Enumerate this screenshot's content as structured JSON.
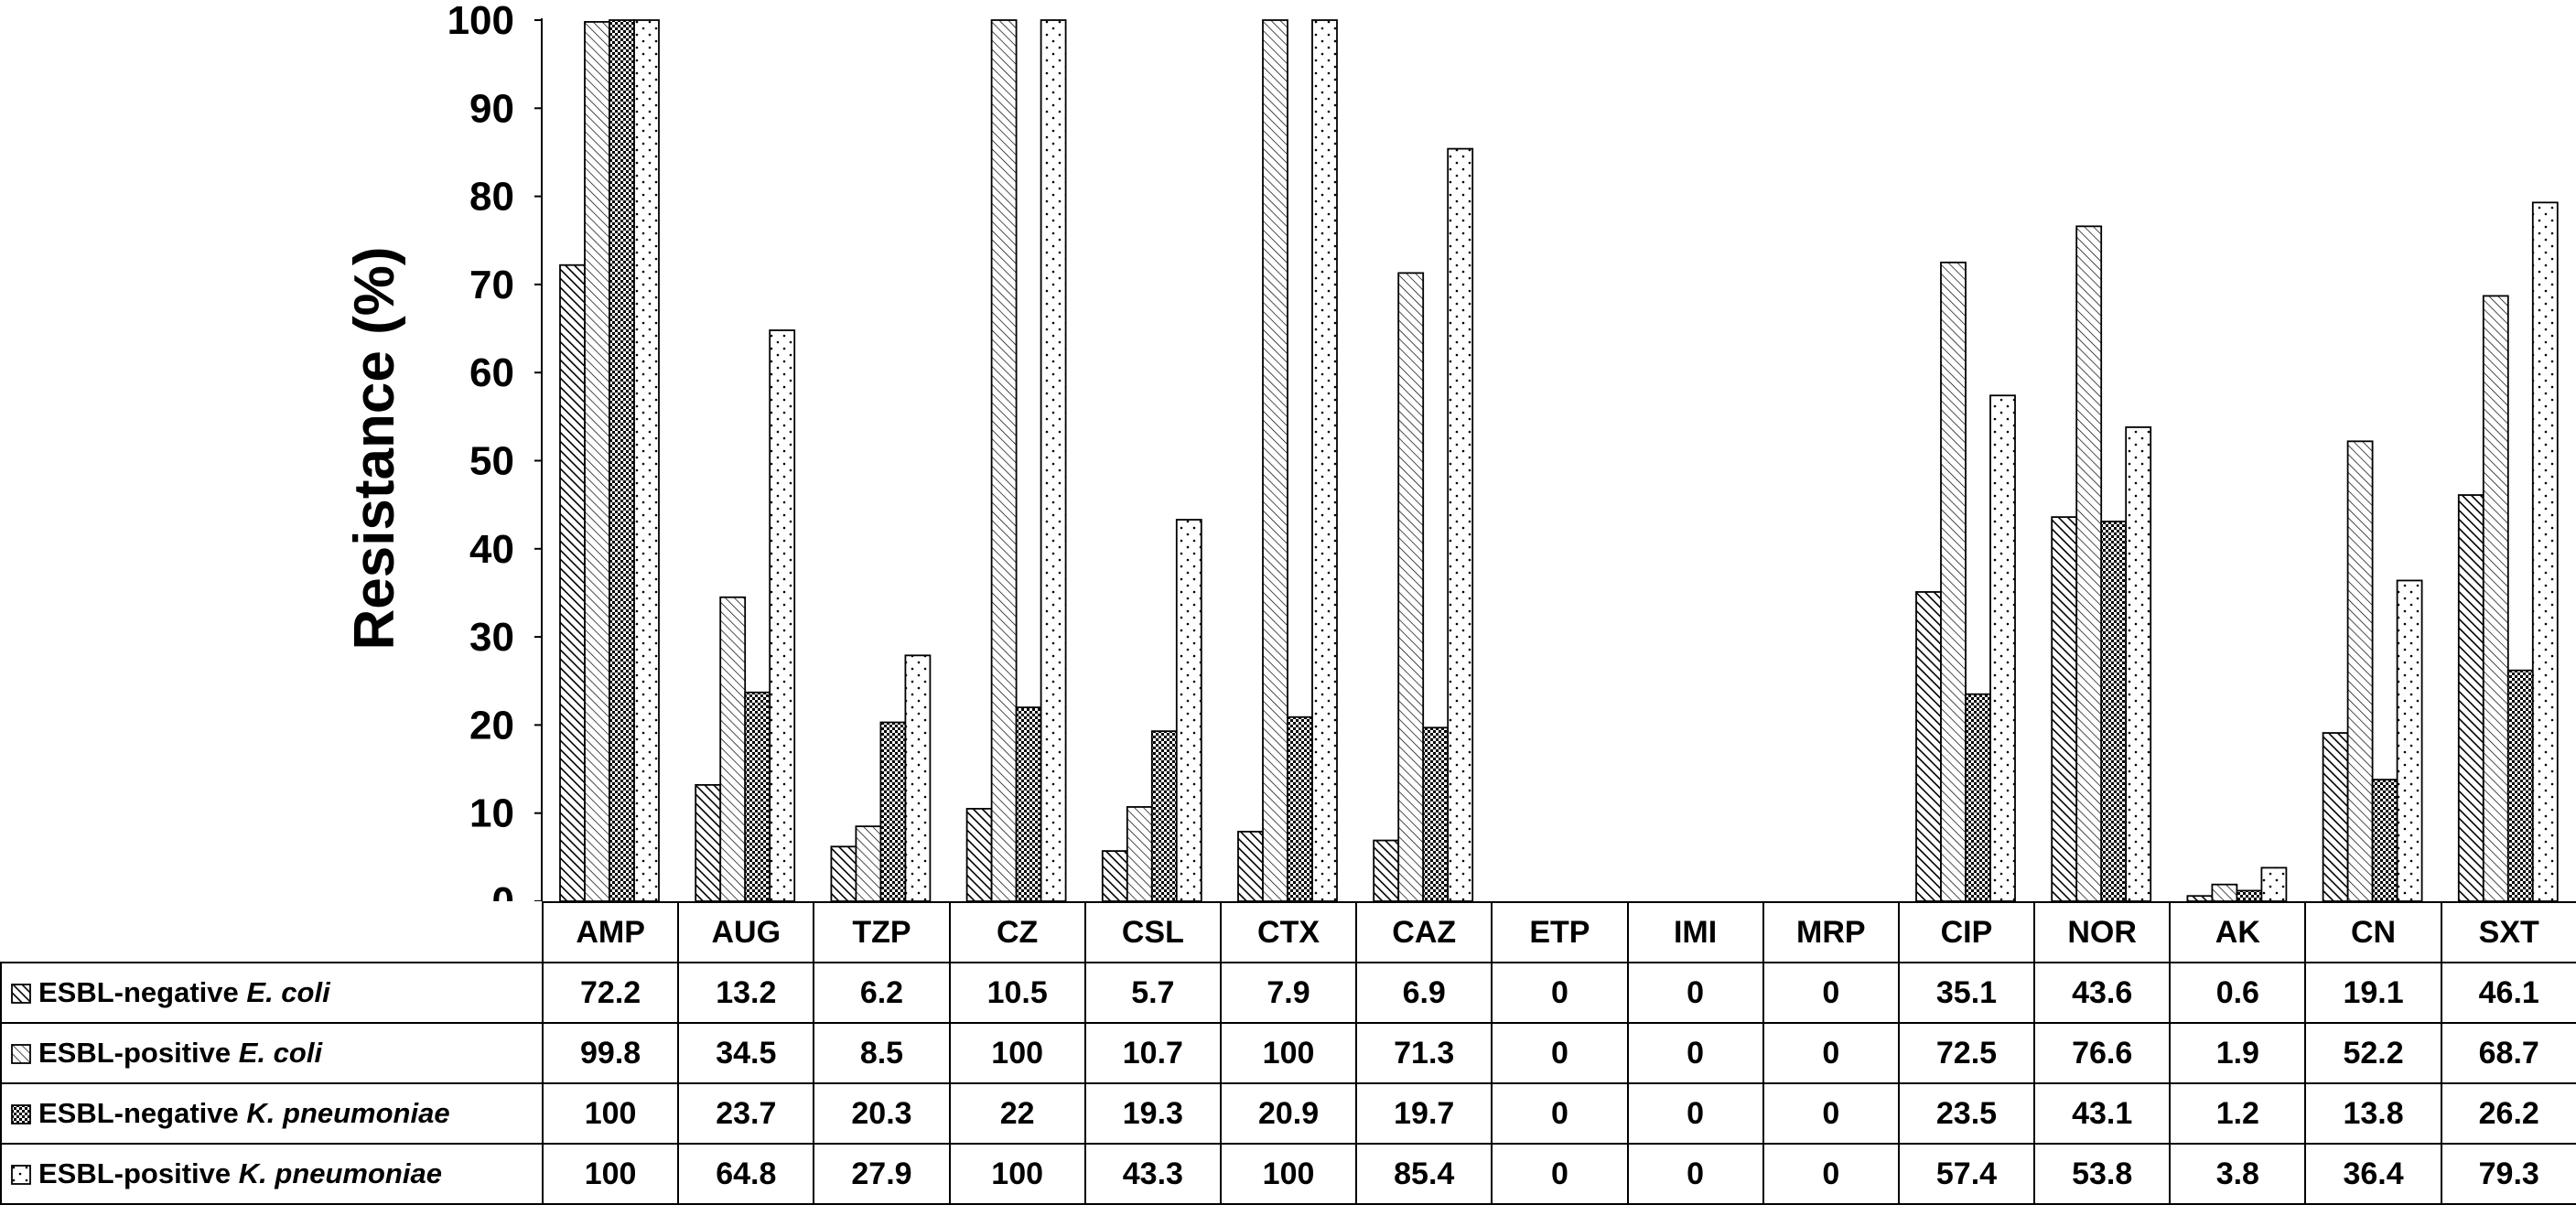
{
  "chart_data": {
    "type": "bar",
    "ylabel": "Resistance (%)",
    "ylim": [
      0,
      100
    ],
    "yticks": [
      0,
      10,
      20,
      30,
      40,
      50,
      60,
      70,
      80,
      90,
      100
    ],
    "grid": false,
    "legend_placement": "table-left",
    "categories": [
      "AMP",
      "AUG",
      "TZP",
      "CZ",
      "CSL",
      "CTX",
      "CAZ",
      "ETP",
      "IMI",
      "MRP",
      "CIP",
      "NOR",
      "AK",
      "CN",
      "SXT"
    ],
    "series": [
      {
        "name": "ESBL-negative E. coli",
        "name_prefix": "ESBL-negative ",
        "name_organism": "E. coli",
        "pattern": "diagonal-dense",
        "values": [
          "72.2",
          "13.2",
          "6.2",
          "10.5",
          "5.7",
          "7.9",
          "6.9",
          "0",
          "0",
          "0",
          "35.1",
          "43.6",
          "0.6",
          "19.1",
          "46.1"
        ]
      },
      {
        "name": "ESBL-positive E. coli",
        "name_prefix": "ESBL-positive ",
        "name_organism": "E. coli",
        "pattern": "diagonal-light",
        "values": [
          "99.8",
          "34.5",
          "8.5",
          "100",
          "10.7",
          "100",
          "71.3",
          "0",
          "0",
          "0",
          "72.5",
          "76.6",
          "1.9",
          "52.2",
          "68.7"
        ]
      },
      {
        "name": "ESBL-negative K. pneumoniae",
        "name_prefix": "ESBL-negative ",
        "name_organism": "K. pneumoniae",
        "pattern": "checker",
        "values": [
          "100",
          "23.7",
          "20.3",
          "22",
          "19.3",
          "20.9",
          "19.7",
          "0",
          "0",
          "0",
          "23.5",
          "43.1",
          "1.2",
          "13.8",
          "26.2"
        ]
      },
      {
        "name": "ESBL-positive K. pneumoniae",
        "name_prefix": "ESBL-positive ",
        "name_organism": "K. pneumoniae",
        "pattern": "dots",
        "values": [
          "100",
          "64.8",
          "27.9",
          "100",
          "43.3",
          "100",
          "85.4",
          "0",
          "0",
          "0",
          "57.4",
          "53.8",
          "3.8",
          "36.4",
          "79.3"
        ]
      }
    ]
  }
}
